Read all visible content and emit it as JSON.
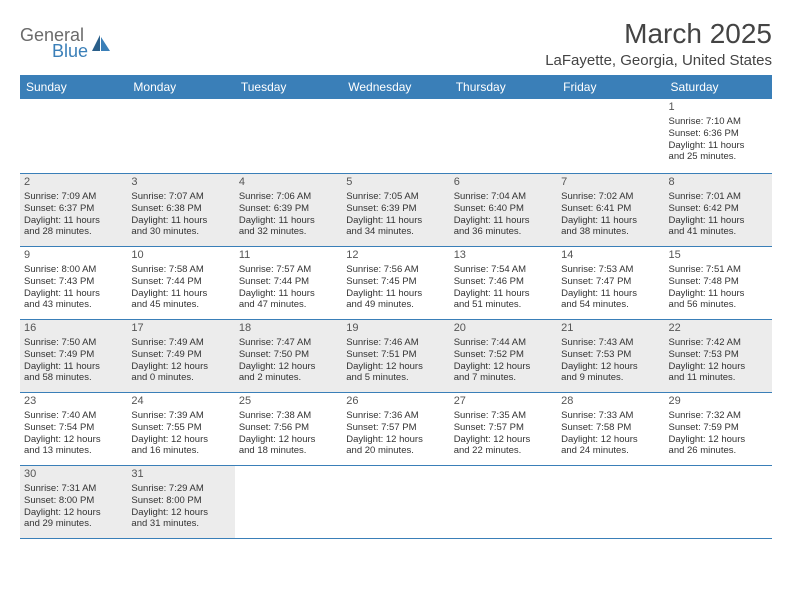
{
  "logo": {
    "general": "General",
    "blue": "Blue"
  },
  "title": "March 2025",
  "location": "LaFayette, Georgia, United States",
  "colors": {
    "header_bg": "#3a7fb8",
    "header_text": "#ffffff",
    "shaded_bg": "#ececec",
    "border": "#3a7fb8",
    "text": "#333333",
    "title_text": "#444444"
  },
  "weekdays": [
    "Sunday",
    "Monday",
    "Tuesday",
    "Wednesday",
    "Thursday",
    "Friday",
    "Saturday"
  ],
  "weeks": [
    [
      {
        "empty": true,
        "shaded": false
      },
      {
        "empty": true,
        "shaded": false
      },
      {
        "empty": true,
        "shaded": false
      },
      {
        "empty": true,
        "shaded": false
      },
      {
        "empty": true,
        "shaded": false
      },
      {
        "empty": true,
        "shaded": false
      },
      {
        "day": "1",
        "sunrise": "Sunrise: 7:10 AM",
        "sunset": "Sunset: 6:36 PM",
        "daylight1": "Daylight: 11 hours",
        "daylight2": "and 25 minutes.",
        "shaded": false
      }
    ],
    [
      {
        "day": "2",
        "sunrise": "Sunrise: 7:09 AM",
        "sunset": "Sunset: 6:37 PM",
        "daylight1": "Daylight: 11 hours",
        "daylight2": "and 28 minutes.",
        "shaded": true
      },
      {
        "day": "3",
        "sunrise": "Sunrise: 7:07 AM",
        "sunset": "Sunset: 6:38 PM",
        "daylight1": "Daylight: 11 hours",
        "daylight2": "and 30 minutes.",
        "shaded": true
      },
      {
        "day": "4",
        "sunrise": "Sunrise: 7:06 AM",
        "sunset": "Sunset: 6:39 PM",
        "daylight1": "Daylight: 11 hours",
        "daylight2": "and 32 minutes.",
        "shaded": true
      },
      {
        "day": "5",
        "sunrise": "Sunrise: 7:05 AM",
        "sunset": "Sunset: 6:39 PM",
        "daylight1": "Daylight: 11 hours",
        "daylight2": "and 34 minutes.",
        "shaded": true
      },
      {
        "day": "6",
        "sunrise": "Sunrise: 7:04 AM",
        "sunset": "Sunset: 6:40 PM",
        "daylight1": "Daylight: 11 hours",
        "daylight2": "and 36 minutes.",
        "shaded": true
      },
      {
        "day": "7",
        "sunrise": "Sunrise: 7:02 AM",
        "sunset": "Sunset: 6:41 PM",
        "daylight1": "Daylight: 11 hours",
        "daylight2": "and 38 minutes.",
        "shaded": true
      },
      {
        "day": "8",
        "sunrise": "Sunrise: 7:01 AM",
        "sunset": "Sunset: 6:42 PM",
        "daylight1": "Daylight: 11 hours",
        "daylight2": "and 41 minutes.",
        "shaded": true
      }
    ],
    [
      {
        "day": "9",
        "sunrise": "Sunrise: 8:00 AM",
        "sunset": "Sunset: 7:43 PM",
        "daylight1": "Daylight: 11 hours",
        "daylight2": "and 43 minutes.",
        "shaded": false
      },
      {
        "day": "10",
        "sunrise": "Sunrise: 7:58 AM",
        "sunset": "Sunset: 7:44 PM",
        "daylight1": "Daylight: 11 hours",
        "daylight2": "and 45 minutes.",
        "shaded": false
      },
      {
        "day": "11",
        "sunrise": "Sunrise: 7:57 AM",
        "sunset": "Sunset: 7:44 PM",
        "daylight1": "Daylight: 11 hours",
        "daylight2": "and 47 minutes.",
        "shaded": false
      },
      {
        "day": "12",
        "sunrise": "Sunrise: 7:56 AM",
        "sunset": "Sunset: 7:45 PM",
        "daylight1": "Daylight: 11 hours",
        "daylight2": "and 49 minutes.",
        "shaded": false
      },
      {
        "day": "13",
        "sunrise": "Sunrise: 7:54 AM",
        "sunset": "Sunset: 7:46 PM",
        "daylight1": "Daylight: 11 hours",
        "daylight2": "and 51 minutes.",
        "shaded": false
      },
      {
        "day": "14",
        "sunrise": "Sunrise: 7:53 AM",
        "sunset": "Sunset: 7:47 PM",
        "daylight1": "Daylight: 11 hours",
        "daylight2": "and 54 minutes.",
        "shaded": false
      },
      {
        "day": "15",
        "sunrise": "Sunrise: 7:51 AM",
        "sunset": "Sunset: 7:48 PM",
        "daylight1": "Daylight: 11 hours",
        "daylight2": "and 56 minutes.",
        "shaded": false
      }
    ],
    [
      {
        "day": "16",
        "sunrise": "Sunrise: 7:50 AM",
        "sunset": "Sunset: 7:49 PM",
        "daylight1": "Daylight: 11 hours",
        "daylight2": "and 58 minutes.",
        "shaded": true
      },
      {
        "day": "17",
        "sunrise": "Sunrise: 7:49 AM",
        "sunset": "Sunset: 7:49 PM",
        "daylight1": "Daylight: 12 hours",
        "daylight2": "and 0 minutes.",
        "shaded": true
      },
      {
        "day": "18",
        "sunrise": "Sunrise: 7:47 AM",
        "sunset": "Sunset: 7:50 PM",
        "daylight1": "Daylight: 12 hours",
        "daylight2": "and 2 minutes.",
        "shaded": true
      },
      {
        "day": "19",
        "sunrise": "Sunrise: 7:46 AM",
        "sunset": "Sunset: 7:51 PM",
        "daylight1": "Daylight: 12 hours",
        "daylight2": "and 5 minutes.",
        "shaded": true
      },
      {
        "day": "20",
        "sunrise": "Sunrise: 7:44 AM",
        "sunset": "Sunset: 7:52 PM",
        "daylight1": "Daylight: 12 hours",
        "daylight2": "and 7 minutes.",
        "shaded": true
      },
      {
        "day": "21",
        "sunrise": "Sunrise: 7:43 AM",
        "sunset": "Sunset: 7:53 PM",
        "daylight1": "Daylight: 12 hours",
        "daylight2": "and 9 minutes.",
        "shaded": true
      },
      {
        "day": "22",
        "sunrise": "Sunrise: 7:42 AM",
        "sunset": "Sunset: 7:53 PM",
        "daylight1": "Daylight: 12 hours",
        "daylight2": "and 11 minutes.",
        "shaded": true
      }
    ],
    [
      {
        "day": "23",
        "sunrise": "Sunrise: 7:40 AM",
        "sunset": "Sunset: 7:54 PM",
        "daylight1": "Daylight: 12 hours",
        "daylight2": "and 13 minutes.",
        "shaded": false
      },
      {
        "day": "24",
        "sunrise": "Sunrise: 7:39 AM",
        "sunset": "Sunset: 7:55 PM",
        "daylight1": "Daylight: 12 hours",
        "daylight2": "and 16 minutes.",
        "shaded": false
      },
      {
        "day": "25",
        "sunrise": "Sunrise: 7:38 AM",
        "sunset": "Sunset: 7:56 PM",
        "daylight1": "Daylight: 12 hours",
        "daylight2": "and 18 minutes.",
        "shaded": false
      },
      {
        "day": "26",
        "sunrise": "Sunrise: 7:36 AM",
        "sunset": "Sunset: 7:57 PM",
        "daylight1": "Daylight: 12 hours",
        "daylight2": "and 20 minutes.",
        "shaded": false
      },
      {
        "day": "27",
        "sunrise": "Sunrise: 7:35 AM",
        "sunset": "Sunset: 7:57 PM",
        "daylight1": "Daylight: 12 hours",
        "daylight2": "and 22 minutes.",
        "shaded": false
      },
      {
        "day": "28",
        "sunrise": "Sunrise: 7:33 AM",
        "sunset": "Sunset: 7:58 PM",
        "daylight1": "Daylight: 12 hours",
        "daylight2": "and 24 minutes.",
        "shaded": false
      },
      {
        "day": "29",
        "sunrise": "Sunrise: 7:32 AM",
        "sunset": "Sunset: 7:59 PM",
        "daylight1": "Daylight: 12 hours",
        "daylight2": "and 26 minutes.",
        "shaded": false
      }
    ],
    [
      {
        "day": "30",
        "sunrise": "Sunrise: 7:31 AM",
        "sunset": "Sunset: 8:00 PM",
        "daylight1": "Daylight: 12 hours",
        "daylight2": "and 29 minutes.",
        "shaded": true
      },
      {
        "day": "31",
        "sunrise": "Sunrise: 7:29 AM",
        "sunset": "Sunset: 8:00 PM",
        "daylight1": "Daylight: 12 hours",
        "daylight2": "and 31 minutes.",
        "shaded": true
      },
      {
        "empty": true,
        "shaded": false
      },
      {
        "empty": true,
        "shaded": false
      },
      {
        "empty": true,
        "shaded": false
      },
      {
        "empty": true,
        "shaded": false
      },
      {
        "empty": true,
        "shaded": false
      }
    ]
  ]
}
